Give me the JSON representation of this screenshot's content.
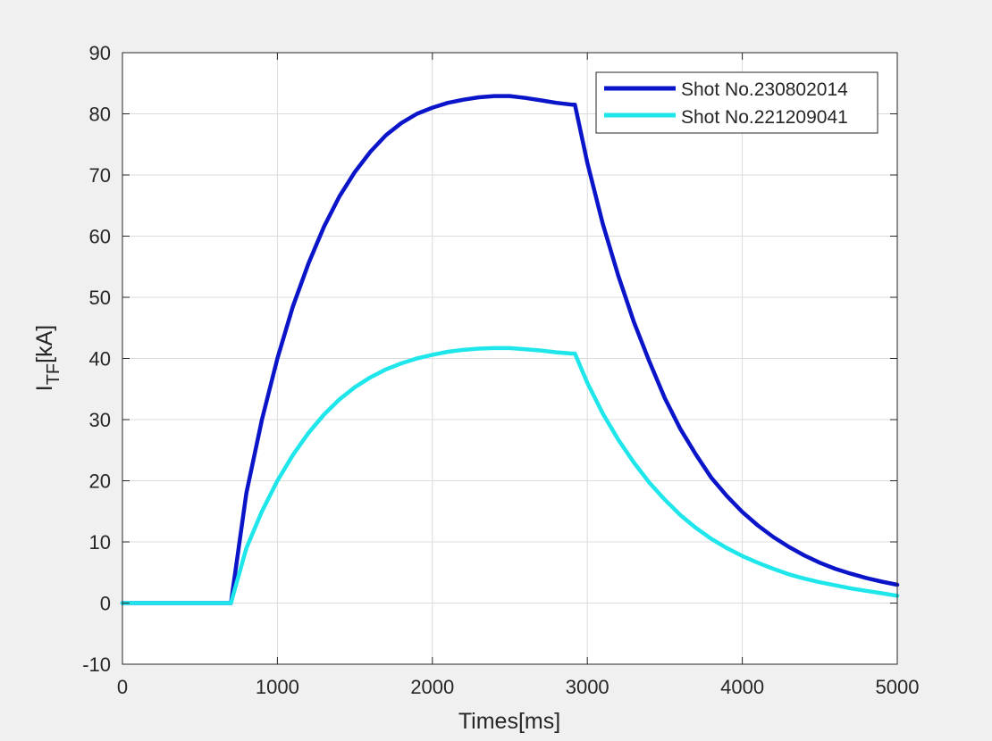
{
  "chart_data": {
    "type": "line",
    "title": "",
    "xlabel": "Times[ms]",
    "ylabel": {
      "main": "I",
      "subscript": "TF",
      "unit": "[kA]"
    },
    "xlim": [
      0,
      5000
    ],
    "ylim": [
      -10,
      90
    ],
    "xticks": [
      0,
      1000,
      2000,
      3000,
      4000,
      5000
    ],
    "yticks": [
      -10,
      0,
      10,
      20,
      30,
      40,
      50,
      60,
      70,
      80,
      90
    ],
    "grid": true,
    "legend_position": "top-right",
    "series": [
      {
        "name": "Shot No.230802014",
        "color": "#0a14c8",
        "x": [
          0,
          500,
          700,
          800,
          900,
          1000,
          1100,
          1200,
          1300,
          1400,
          1500,
          1600,
          1700,
          1800,
          1900,
          2000,
          2100,
          2200,
          2300,
          2400,
          2500,
          2600,
          2700,
          2800,
          2900,
          2920,
          3000,
          3100,
          3200,
          3300,
          3400,
          3500,
          3600,
          3700,
          3800,
          3900,
          4000,
          4100,
          4200,
          4300,
          4400,
          4500,
          4600,
          4700,
          4800,
          4900,
          5000
        ],
        "y": [
          0,
          0,
          0,
          18,
          30,
          40,
          48.5,
          55.5,
          61.5,
          66.5,
          70.5,
          73.8,
          76.5,
          78.5,
          80,
          81,
          81.8,
          82.3,
          82.7,
          82.9,
          82.9,
          82.6,
          82.2,
          81.8,
          81.5,
          81.5,
          72,
          62,
          53.5,
          46,
          39.5,
          33.5,
          28.5,
          24.3,
          20.5,
          17.5,
          14.9,
          12.7,
          10.8,
          9.2,
          7.8,
          6.6,
          5.6,
          4.8,
          4.1,
          3.5,
          3
        ]
      },
      {
        "name": "Shot No.221209041",
        "color": "#1ee6eb",
        "x": [
          0,
          500,
          700,
          800,
          900,
          1000,
          1100,
          1200,
          1300,
          1400,
          1500,
          1600,
          1700,
          1800,
          1900,
          2000,
          2100,
          2200,
          2300,
          2400,
          2500,
          2600,
          2700,
          2800,
          2900,
          2920,
          3000,
          3100,
          3200,
          3300,
          3400,
          3500,
          3600,
          3700,
          3800,
          3900,
          4000,
          4100,
          4200,
          4300,
          4400,
          4500,
          4600,
          4700,
          4800,
          4900,
          5000
        ],
        "y": [
          0,
          0,
          0,
          9,
          15,
          20,
          24.2,
          27.8,
          30.8,
          33.3,
          35.3,
          36.9,
          38.2,
          39.2,
          40,
          40.6,
          41.1,
          41.4,
          41.6,
          41.7,
          41.7,
          41.5,
          41.3,
          41,
          40.8,
          40.8,
          36,
          31,
          26.7,
          23,
          19.7,
          16.9,
          14.4,
          12.3,
          10.5,
          9,
          7.7,
          6.6,
          5.6,
          4.7,
          4,
          3.4,
          2.9,
          2.4,
          2,
          1.6,
          1.2
        ]
      }
    ]
  }
}
